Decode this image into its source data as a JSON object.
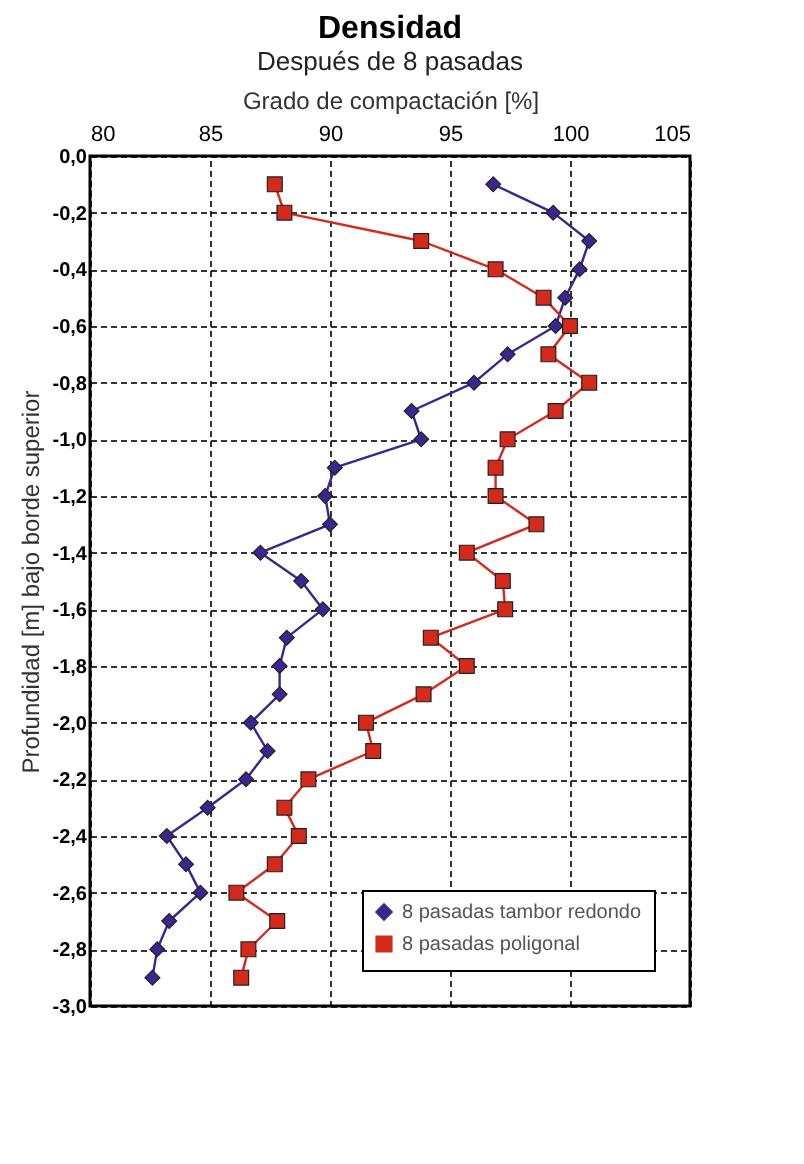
{
  "chart_data": {
    "type": "line",
    "title": "Densidad",
    "subtitle": "Después de 8 pasadas",
    "xlabel": "Grado de compactación [%]",
    "ylabel": "Profundidad [m] bajo borde superior",
    "xlim": [
      80,
      105
    ],
    "xticks": [
      80,
      85,
      90,
      95,
      100,
      105
    ],
    "ylim": [
      -3.0,
      0.0
    ],
    "yticks": [
      {
        "value": 0,
        "label": "0,0"
      },
      {
        "value": -0.2,
        "label": "-0,2"
      },
      {
        "value": -0.4,
        "label": "-0,4"
      },
      {
        "value": -0.6,
        "label": "-0,6"
      },
      {
        "value": -0.8,
        "label": "-0,8"
      },
      {
        "value": -1.0,
        "label": "-1,0"
      },
      {
        "value": -1.2,
        "label": "-1,2"
      },
      {
        "value": -1.4,
        "label": "-1,4"
      },
      {
        "value": -1.6,
        "label": "-1,6"
      },
      {
        "value": -1.8,
        "label": "-1,8"
      },
      {
        "value": -2.0,
        "label": "-2,0"
      },
      {
        "value": -2.2,
        "label": "-2,2"
      },
      {
        "value": -2.4,
        "label": "-2,4"
      },
      {
        "value": -2.6,
        "label": "-2,6"
      },
      {
        "value": -2.8,
        "label": "-2,8"
      },
      {
        "value": -3.0,
        "label": "-3,0"
      }
    ],
    "grid": true,
    "legend": "bottom right",
    "line_style": "solid",
    "series": [
      {
        "name": "8 pasadas tambor redondo",
        "color": "#3b2590",
        "marker": "diamond",
        "x": [
          96.8,
          99.3,
          100.8,
          100.4,
          99.8,
          99.4,
          97.4,
          96.0,
          93.4,
          93.8,
          90.2,
          89.8,
          90.0,
          87.1,
          88.8,
          89.7,
          88.2,
          87.9,
          87.9,
          86.7,
          87.4,
          86.5,
          84.9,
          83.2,
          84.0,
          84.6,
          83.3,
          82.8,
          82.6
        ],
        "values": [
          -0.1,
          -0.2,
          -0.3,
          -0.4,
          -0.5,
          -0.6,
          -0.7,
          -0.8,
          -0.9,
          -1.0,
          -1.1,
          -1.2,
          -1.3,
          -1.4,
          -1.5,
          -1.6,
          -1.7,
          -1.8,
          -1.9,
          -2.0,
          -2.1,
          -2.2,
          -2.3,
          -2.4,
          -2.5,
          -2.6,
          -2.7,
          -2.8,
          -2.9
        ]
      },
      {
        "name": "8 pasadas poligonal",
        "color": "#d42a1c",
        "marker": "square",
        "x": [
          87.7,
          88.1,
          93.8,
          96.9,
          98.9,
          100.0,
          99.1,
          100.8,
          99.4,
          97.4,
          96.9,
          96.9,
          98.6,
          95.7,
          97.2,
          97.3,
          94.2,
          95.7,
          93.9,
          91.5,
          91.8,
          89.1,
          88.1,
          88.7,
          87.7,
          86.1,
          87.8,
          86.6,
          86.3
        ],
        "values": [
          -0.1,
          -0.2,
          -0.3,
          -0.4,
          -0.5,
          -0.6,
          -0.7,
          -0.8,
          -0.9,
          -1.0,
          -1.1,
          -1.2,
          -1.3,
          -1.4,
          -1.5,
          -1.6,
          -1.7,
          -1.8,
          -1.9,
          -2.0,
          -2.1,
          -2.2,
          -2.3,
          -2.4,
          -2.5,
          -2.6,
          -2.7,
          -2.8,
          -2.9
        ]
      }
    ]
  }
}
